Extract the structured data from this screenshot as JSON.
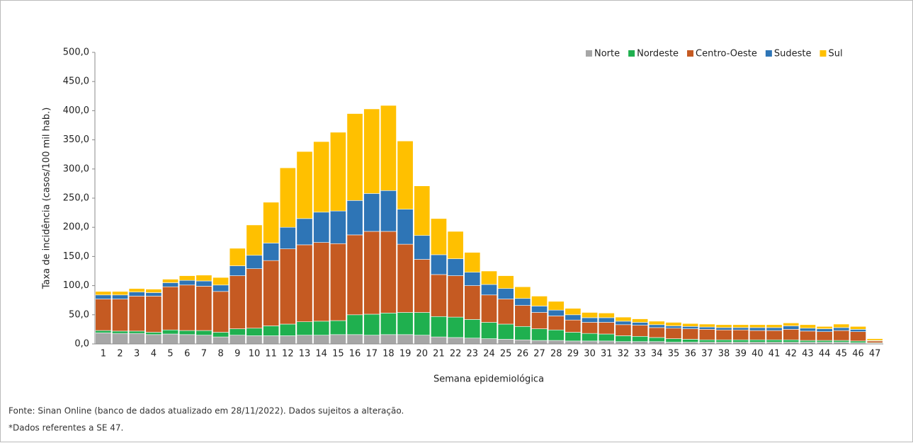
{
  "chart_data": {
    "type": "stacked_bar",
    "y_label": "Taxa de incidência (casos/100 mil hab.)",
    "x_label": "Semana epidemiológica",
    "categories": [
      "1",
      "2",
      "3",
      "4",
      "5",
      "6",
      "7",
      "8",
      "9",
      "10",
      "11",
      "12",
      "13",
      "14",
      "15",
      "16",
      "17",
      "18",
      "19",
      "20",
      "21",
      "22",
      "23",
      "24",
      "25",
      "26",
      "27",
      "28",
      "29",
      "30",
      "31",
      "32",
      "33",
      "34",
      "35",
      "36",
      "37",
      "38",
      "39",
      "40",
      "41",
      "42",
      "43",
      "44",
      "45",
      "46",
      "47"
    ],
    "series": [
      {
        "name": "Norte",
        "color": "#a6a6a6",
        "values": [
          19,
          18,
          18,
          16,
          17,
          16,
          15,
          12,
          15,
          14,
          14,
          14,
          15,
          15,
          16,
          16,
          15,
          16,
          16,
          15,
          12,
          11,
          10,
          9,
          8,
          7,
          6,
          6,
          5,
          5,
          5,
          4,
          4,
          4,
          3,
          3,
          3,
          3,
          3,
          3,
          3,
          3,
          3,
          3,
          3,
          2,
          1
        ]
      },
      {
        "name": "Nordeste",
        "color": "#1fb04f",
        "values": [
          4,
          4,
          4,
          4,
          7,
          7,
          8,
          8,
          11,
          13,
          17,
          20,
          23,
          24,
          24,
          34,
          36,
          37,
          38,
          39,
          35,
          35,
          32,
          28,
          26,
          23,
          20,
          18,
          15,
          13,
          12,
          10,
          9,
          7,
          6,
          5,
          4,
          4,
          4,
          4,
          4,
          4,
          3,
          3,
          3,
          3,
          1
        ]
      },
      {
        "name": "Centro-Oeste",
        "color": "#c55a22",
        "values": [
          54,
          55,
          60,
          62,
          74,
          78,
          76,
          70,
          91,
          102,
          112,
          129,
          132,
          135,
          132,
          137,
          142,
          140,
          117,
          91,
          72,
          71,
          58,
          47,
          43,
          36,
          28,
          24,
          21,
          19,
          20,
          19,
          19,
          17,
          18,
          18,
          18,
          17,
          17,
          16,
          16,
          18,
          16,
          15,
          17,
          16,
          3
        ]
      },
      {
        "name": "Sudeste",
        "color": "#2e75b6",
        "values": [
          7,
          7,
          7,
          6,
          7,
          8,
          9,
          11,
          17,
          23,
          30,
          37,
          45,
          52,
          56,
          59,
          65,
          70,
          60,
          41,
          34,
          29,
          23,
          18,
          18,
          12,
          11,
          10,
          9,
          8,
          8,
          6,
          5,
          5,
          4,
          4,
          4,
          4,
          4,
          5,
          5,
          6,
          5,
          5,
          5,
          4,
          1
        ]
      },
      {
        "name": "Sul",
        "color": "#ffc000",
        "values": [
          6,
          6,
          6,
          6,
          6,
          8,
          10,
          13,
          30,
          52,
          70,
          102,
          115,
          121,
          135,
          149,
          145,
          146,
          117,
          85,
          62,
          47,
          34,
          23,
          22,
          20,
          17,
          15,
          11,
          9,
          8,
          7,
          6,
          6,
          6,
          5,
          5,
          5,
          5,
          5,
          5,
          5,
          6,
          4,
          6,
          5,
          3
        ]
      }
    ],
    "ylim": [
      0,
      500
    ],
    "yticks": [
      {
        "value": 0,
        "label": "0,0"
      },
      {
        "value": 50,
        "label": "50,0"
      },
      {
        "value": 100,
        "label": "100,0"
      },
      {
        "value": 150,
        "label": "150,0"
      },
      {
        "value": 200,
        "label": "200,0"
      },
      {
        "value": 250,
        "label": "250,0"
      },
      {
        "value": 300,
        "label": "300,0"
      },
      {
        "value": 350,
        "label": "350,0"
      },
      {
        "value": 400,
        "label": "400,0"
      },
      {
        "value": 450,
        "label": "450,0"
      },
      {
        "value": 500,
        "label": "500,0"
      }
    ],
    "legend": "top-right",
    "footnotes": [
      "Fonte: Sinan Online (banco de dados atualizado em 28/11/2022). Dados sujeitos a alteração.",
      "*Dados referentes a SE 47."
    ]
  }
}
